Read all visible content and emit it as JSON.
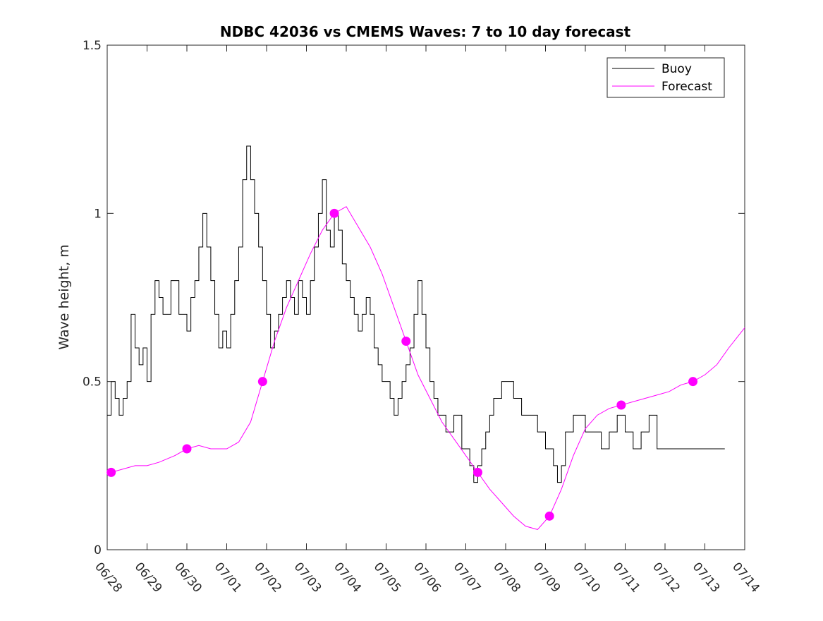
{
  "chart_data": {
    "type": "line",
    "title": "NDBC 42036 vs CMEMS Waves: 7 to 10 day forecast",
    "xlabel": "",
    "ylabel": "Wave height, m",
    "xlim": [
      0,
      16
    ],
    "ylim": [
      0,
      1.5
    ],
    "x_ticks": [
      {
        "value": 0,
        "label": "06/28"
      },
      {
        "value": 1,
        "label": "06/29"
      },
      {
        "value": 2,
        "label": "06/30"
      },
      {
        "value": 3,
        "label": "07/01"
      },
      {
        "value": 4,
        "label": "07/02"
      },
      {
        "value": 5,
        "label": "07/03"
      },
      {
        "value": 6,
        "label": "07/04"
      },
      {
        "value": 7,
        "label": "07/05"
      },
      {
        "value": 8,
        "label": "07/06"
      },
      {
        "value": 9,
        "label": "07/07"
      },
      {
        "value": 10,
        "label": "07/08"
      },
      {
        "value": 11,
        "label": "07/09"
      },
      {
        "value": 12,
        "label": "07/10"
      },
      {
        "value": 13,
        "label": "07/11"
      },
      {
        "value": 14,
        "label": "07/12"
      },
      {
        "value": 15,
        "label": "07/13"
      },
      {
        "value": 16,
        "label": "07/14"
      }
    ],
    "y_ticks": [
      {
        "value": 0,
        "label": "0"
      },
      {
        "value": 0.5,
        "label": "0.5"
      },
      {
        "value": 1,
        "label": "1"
      },
      {
        "value": 1.5,
        "label": "1.5"
      }
    ],
    "grid": false,
    "legend_position": "top-right",
    "colors": {
      "buoy": "#000000",
      "forecast": "#ff00ff"
    },
    "series": [
      {
        "name": "Buoy",
        "x": [
          0,
          0.1,
          0.2,
          0.3,
          0.4,
          0.5,
          0.6,
          0.7,
          0.8,
          0.9,
          1.0,
          1.1,
          1.2,
          1.3,
          1.4,
          1.6,
          1.8,
          2.0,
          2.1,
          2.2,
          2.3,
          2.4,
          2.5,
          2.6,
          2.7,
          2.8,
          2.9,
          3.0,
          3.1,
          3.2,
          3.3,
          3.4,
          3.5,
          3.6,
          3.7,
          3.8,
          3.9,
          4.0,
          4.1,
          4.2,
          4.3,
          4.4,
          4.5,
          4.6,
          4.7,
          4.8,
          4.9,
          5.0,
          5.1,
          5.2,
          5.3,
          5.4,
          5.5,
          5.6,
          5.7,
          5.8,
          5.9,
          6.0,
          6.1,
          6.2,
          6.3,
          6.4,
          6.5,
          6.6,
          6.7,
          6.8,
          6.9,
          7.0,
          7.1,
          7.2,
          7.3,
          7.4,
          7.5,
          7.6,
          7.7,
          7.8,
          7.9,
          8.0,
          8.1,
          8.2,
          8.3,
          8.5,
          8.7,
          8.9,
          9.0,
          9.1,
          9.2,
          9.3,
          9.4,
          9.5,
          9.6,
          9.7,
          9.8,
          9.9,
          10.0,
          10.2,
          10.4,
          10.6,
          10.8,
          11.0,
          11.1,
          11.2,
          11.3,
          11.4,
          11.5,
          11.7,
          11.9,
          12.0,
          12.2,
          12.4,
          12.6,
          12.8,
          13.0,
          13.2,
          13.4,
          13.6,
          13.8,
          14.0,
          14.2,
          14.4,
          14.6,
          14.8,
          15.0,
          15.2,
          15.5
        ],
        "y": [
          0.4,
          0.5,
          0.45,
          0.4,
          0.45,
          0.5,
          0.7,
          0.6,
          0.55,
          0.6,
          0.5,
          0.7,
          0.8,
          0.75,
          0.7,
          0.8,
          0.7,
          0.65,
          0.75,
          0.8,
          0.9,
          1.0,
          0.9,
          0.8,
          0.7,
          0.6,
          0.65,
          0.6,
          0.7,
          0.8,
          0.9,
          1.1,
          1.2,
          1.1,
          1.0,
          0.9,
          0.8,
          0.7,
          0.6,
          0.65,
          0.7,
          0.75,
          0.8,
          0.75,
          0.7,
          0.8,
          0.75,
          0.7,
          0.8,
          0.9,
          1.0,
          1.1,
          0.95,
          0.9,
          1.0,
          0.95,
          0.85,
          0.8,
          0.75,
          0.7,
          0.65,
          0.7,
          0.75,
          0.7,
          0.6,
          0.55,
          0.5,
          0.5,
          0.45,
          0.4,
          0.45,
          0.5,
          0.55,
          0.6,
          0.7,
          0.8,
          0.7,
          0.6,
          0.5,
          0.45,
          0.4,
          0.35,
          0.4,
          0.3,
          0.3,
          0.25,
          0.2,
          0.25,
          0.3,
          0.35,
          0.4,
          0.45,
          0.45,
          0.5,
          0.5,
          0.45,
          0.4,
          0.4,
          0.35,
          0.3,
          0.3,
          0.25,
          0.2,
          0.25,
          0.35,
          0.4,
          0.4,
          0.35,
          0.35,
          0.3,
          0.35,
          0.4,
          0.35,
          0.3,
          0.35,
          0.4,
          0.3,
          0.3,
          0.3,
          0.3,
          0.3,
          0.3,
          0.3,
          0.3,
          0.3
        ]
      },
      {
        "name": "Forecast",
        "x": [
          0.1,
          0.4,
          0.7,
          1.0,
          1.3,
          1.7,
          2.0,
          2.3,
          2.6,
          3.0,
          3.3,
          3.6,
          3.9,
          4.2,
          4.5,
          4.8,
          5.1,
          5.4,
          5.7,
          6.0,
          6.3,
          6.6,
          6.9,
          7.2,
          7.5,
          7.8,
          8.1,
          8.4,
          8.7,
          9.0,
          9.3,
          9.6,
          9.9,
          10.2,
          10.5,
          10.8,
          11.1,
          11.4,
          11.7,
          12.0,
          12.3,
          12.6,
          12.9,
          13.2,
          13.5,
          13.8,
          14.1,
          14.4,
          14.7,
          15.0,
          15.3,
          15.6,
          16.0
        ],
        "y": [
          0.23,
          0.24,
          0.25,
          0.25,
          0.26,
          0.28,
          0.3,
          0.31,
          0.3,
          0.3,
          0.32,
          0.38,
          0.5,
          0.62,
          0.72,
          0.8,
          0.88,
          0.95,
          1.0,
          1.02,
          0.96,
          0.9,
          0.82,
          0.72,
          0.62,
          0.52,
          0.45,
          0.38,
          0.33,
          0.28,
          0.23,
          0.18,
          0.14,
          0.1,
          0.07,
          0.06,
          0.1,
          0.18,
          0.28,
          0.36,
          0.4,
          0.42,
          0.43,
          0.44,
          0.45,
          0.46,
          0.47,
          0.49,
          0.5,
          0.52,
          0.55,
          0.6,
          0.66
        ]
      }
    ]
  }
}
